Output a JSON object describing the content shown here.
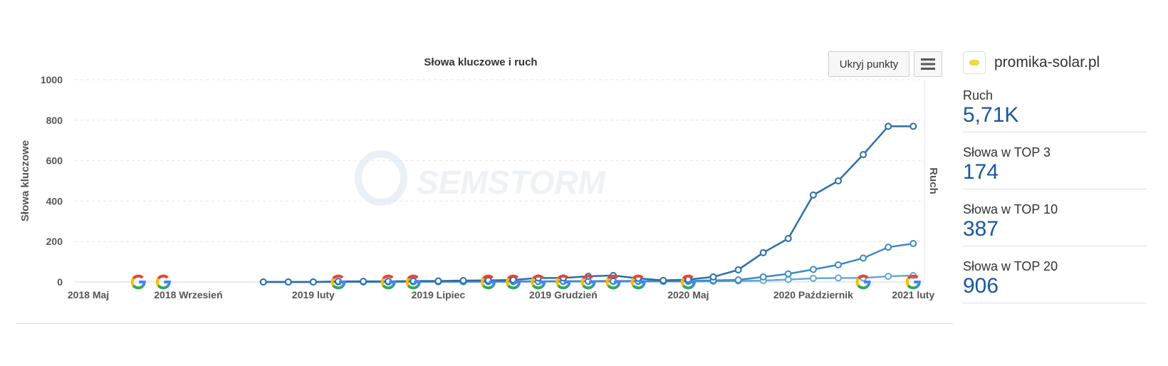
{
  "chart_data": {
    "type": "line",
    "title": "Słowa kluczowe i ruch",
    "ylabel": "Słowa kluczowe",
    "y2label": "Ruch",
    "ylim": [
      0,
      1000
    ],
    "yticks": [
      0,
      200,
      400,
      600,
      800,
      1000
    ],
    "grid": true,
    "xticks": [
      {
        "label": "2018 Maj",
        "month": "2018-05"
      },
      {
        "label": "2018 Wrzesień",
        "month": "2018-09"
      },
      {
        "label": "2019 luty",
        "month": "2019-02"
      },
      {
        "label": "2019 Lipiec",
        "month": "2019-07"
      },
      {
        "label": "2019 Grudzień",
        "month": "2019-12"
      },
      {
        "label": "2020 Maj",
        "month": "2020-05"
      },
      {
        "label": "2020 Październik",
        "month": "2020-10"
      },
      {
        "label": "2021 luty",
        "month": "2021-02"
      }
    ],
    "x": [
      "2018-12",
      "2019-01",
      "2019-02",
      "2019-03",
      "2019-04",
      "2019-05",
      "2019-06",
      "2019-07",
      "2019-08",
      "2019-09",
      "2019-10",
      "2019-11",
      "2019-12",
      "2020-01",
      "2020-02",
      "2020-03",
      "2020-04",
      "2020-05",
      "2020-06",
      "2020-07",
      "2020-08",
      "2020-09",
      "2020-10",
      "2020-11",
      "2020-12",
      "2021-01",
      "2021-02"
    ],
    "series": [
      {
        "color": "#2a6fa8",
        "values": [
          0,
          0,
          0,
          3,
          3,
          3,
          5,
          5,
          7,
          8,
          10,
          20,
          20,
          28,
          32,
          18,
          8,
          12,
          25,
          60,
          145,
          215,
          430,
          500,
          630,
          770,
          770
        ]
      },
      {
        "color": "#3d8ac4",
        "values": [
          0,
          0,
          0,
          1,
          1,
          1,
          2,
          2,
          2,
          3,
          3,
          3,
          4,
          4,
          5,
          5,
          5,
          5,
          8,
          10,
          25,
          40,
          62,
          85,
          118,
          172,
          190
        ]
      },
      {
        "color": "#6aa6d4",
        "values": [
          0,
          0,
          0,
          0,
          0,
          0,
          1,
          1,
          1,
          1,
          1,
          2,
          2,
          2,
          2,
          2,
          2,
          2,
          3,
          5,
          7,
          12,
          18,
          20,
          20,
          28,
          32
        ]
      }
    ],
    "google_updates": [
      "2018-07",
      "2018-08",
      "2019-03",
      "2019-05",
      "2019-06",
      "2019-09",
      "2019-10",
      "2019-11",
      "2019-12",
      "2020-01",
      "2020-02",
      "2020-03",
      "2020-05",
      "2020-12",
      "2021-02"
    ],
    "watermark": "SEMSTORM"
  },
  "toolbar": {
    "hide_points": "Ukryj punkty",
    "menu_icon": "hamburger-icon"
  },
  "sidebar": {
    "site": "promika-solar.pl",
    "stats": [
      {
        "label": "Ruch",
        "value": "5,71K"
      },
      {
        "label": "Słowa w TOP 3",
        "value": "174"
      },
      {
        "label": "Słowa w TOP 10",
        "value": "387"
      },
      {
        "label": "Słowa w TOP 20",
        "value": "906"
      }
    ]
  }
}
